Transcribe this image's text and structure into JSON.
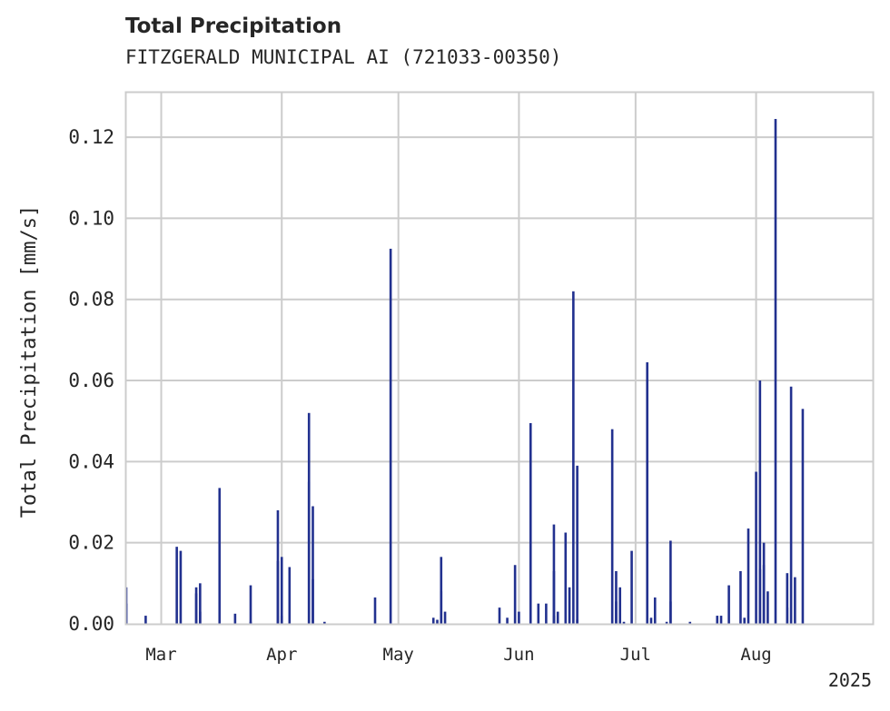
{
  "title": "Total Precipitation",
  "subtitle": "FITZGERALD MUNICIPAL AI (721033-00350)",
  "chart_data": {
    "type": "bar",
    "title": "Total Precipitation",
    "subtitle": "FITZGERALD MUNICIPAL AI (721033-00350)",
    "xlabel": "",
    "ylabel": "Total Precipitation [mm/s]",
    "x_range": [
      "2025-02-20",
      "2025-08-31"
    ],
    "ylim": [
      0,
      0.131
    ],
    "y_ticks": [
      0.0,
      0.02,
      0.04,
      0.06,
      0.08,
      0.1,
      0.12
    ],
    "y_tick_labels": [
      "0.00",
      "0.02",
      "0.04",
      "0.06",
      "0.08",
      "0.10",
      "0.12"
    ],
    "x_ticks": [
      "2025-03-01",
      "2025-04-01",
      "2025-05-01",
      "2025-06-01",
      "2025-07-01",
      "2025-08-01"
    ],
    "x_tick_labels": [
      "Mar",
      "Apr",
      "May",
      "Jun",
      "Jul",
      "Aug"
    ],
    "x_offset_label": "2025",
    "grid": true,
    "bar_color": "#22318f",
    "points": [
      [
        "2025-02-20",
        0.005
      ],
      [
        "2025-02-20",
        0.009
      ],
      [
        "2025-02-25",
        0.002
      ],
      [
        "2025-03-05",
        0.019
      ],
      [
        "2025-03-06",
        0.018
      ],
      [
        "2025-03-10",
        0.0075
      ],
      [
        "2025-03-10",
        0.009
      ],
      [
        "2025-03-11",
        0.01
      ],
      [
        "2025-03-11",
        0.003
      ],
      [
        "2025-03-16",
        0.0335
      ],
      [
        "2025-03-20",
        0.0025
      ],
      [
        "2025-03-24",
        0.0095
      ],
      [
        "2025-03-24",
        0.0005
      ],
      [
        "2025-03-31",
        0.028
      ],
      [
        "2025-03-31",
        0.0155
      ],
      [
        "2025-04-01",
        0.002
      ],
      [
        "2025-04-01",
        0.0165
      ],
      [
        "2025-04-03",
        0.014
      ],
      [
        "2025-04-08",
        0.052
      ],
      [
        "2025-04-08",
        0.035
      ],
      [
        "2025-04-09",
        0.029
      ],
      [
        "2025-04-09",
        0.011
      ],
      [
        "2025-04-12",
        0.0005
      ],
      [
        "2025-04-25",
        0.0065
      ],
      [
        "2025-04-29",
        0.0925
      ],
      [
        "2025-05-10",
        0.0015
      ],
      [
        "2025-05-11",
        0.001
      ],
      [
        "2025-05-12",
        0.0165
      ],
      [
        "2025-05-12",
        0.008
      ],
      [
        "2025-05-13",
        0.003
      ],
      [
        "2025-05-27",
        0.004
      ],
      [
        "2025-05-29",
        0.0015
      ],
      [
        "2025-05-31",
        0.0145
      ],
      [
        "2025-06-01",
        0.003
      ],
      [
        "2025-06-04",
        0.0495
      ],
      [
        "2025-06-06",
        0.005
      ],
      [
        "2025-06-08",
        0.005
      ],
      [
        "2025-06-10",
        0.002
      ],
      [
        "2025-06-10",
        0.013
      ],
      [
        "2025-06-10",
        0.0245
      ],
      [
        "2025-06-11",
        0.003
      ],
      [
        "2025-06-13",
        0.0225
      ],
      [
        "2025-06-14",
        0.009
      ],
      [
        "2025-06-15",
        0.082
      ],
      [
        "2025-06-16",
        0.039
      ],
      [
        "2025-06-16",
        0.001
      ],
      [
        "2025-06-25",
        0.048
      ],
      [
        "2025-06-26",
        0.013
      ],
      [
        "2025-06-26",
        0.0055
      ],
      [
        "2025-06-27",
        0.009
      ],
      [
        "2025-06-28",
        0.0005
      ],
      [
        "2025-06-30",
        0.018
      ],
      [
        "2025-07-04",
        0.0645
      ],
      [
        "2025-07-05",
        0.0015
      ],
      [
        "2025-07-06",
        0.0065
      ],
      [
        "2025-07-09",
        0.0005
      ],
      [
        "2025-07-10",
        0.0055
      ],
      [
        "2025-07-10",
        0.0205
      ],
      [
        "2025-07-15",
        0.0005
      ],
      [
        "2025-07-22",
        0.002
      ],
      [
        "2025-07-23",
        0.002
      ],
      [
        "2025-07-25",
        0.0095
      ],
      [
        "2025-07-28",
        0.013
      ],
      [
        "2025-07-29",
        0.0015
      ],
      [
        "2025-07-30",
        0.0235
      ],
      [
        "2025-08-01",
        0.0375
      ],
      [
        "2025-08-02",
        0.06
      ],
      [
        "2025-08-02",
        0.0135
      ],
      [
        "2025-08-03",
        0.02
      ],
      [
        "2025-08-03",
        0.0145
      ],
      [
        "2025-08-04",
        0.008
      ],
      [
        "2025-08-06",
        0.1245
      ],
      [
        "2025-08-09",
        0.0125
      ],
      [
        "2025-08-09",
        0.004
      ],
      [
        "2025-08-10",
        0.0585
      ],
      [
        "2025-08-11",
        0.0115
      ],
      [
        "2025-08-13",
        0.053
      ]
    ]
  }
}
